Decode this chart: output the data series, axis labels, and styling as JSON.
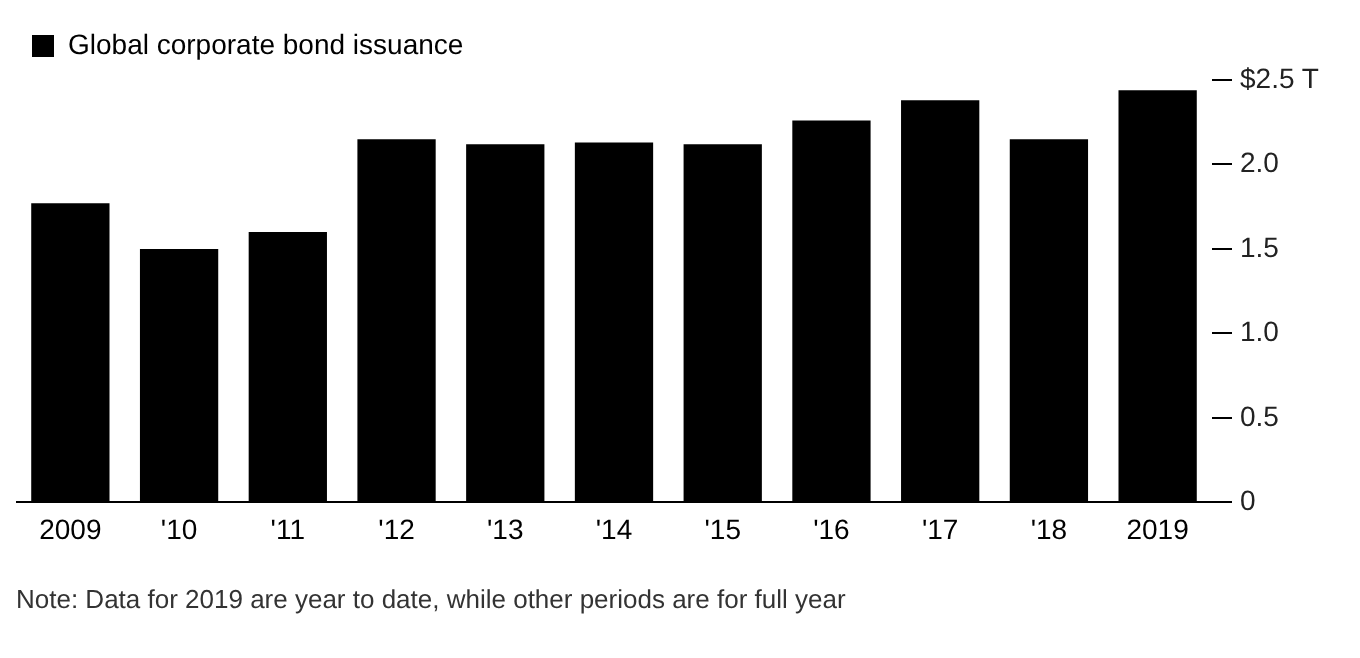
{
  "chart_data": {
    "type": "bar",
    "categories": [
      "2009",
      "'10",
      "'11",
      "'12",
      "'13",
      "'14",
      "'15",
      "'16",
      "'17",
      "'18",
      "2019"
    ],
    "series": [
      {
        "name": "Global corporate bond issuance",
        "color": "#000000",
        "values": [
          1.77,
          1.5,
          1.6,
          2.15,
          2.12,
          2.13,
          2.12,
          2.26,
          2.38,
          2.15,
          2.44
        ]
      }
    ],
    "ylim": [
      0,
      2.5
    ],
    "yticks": [
      0,
      0.5,
      {
        "value": 1,
        "label": "1.0"
      },
      1.5,
      {
        "value": 2,
        "label": "2.0"
      },
      {
        "value": 2.5,
        "label": "$2.5 T"
      }
    ],
    "grid": false,
    "legend": "top left",
    "annotations": [
      "Note: Data for 2019 are year to date, while other periods are for full year"
    ]
  }
}
